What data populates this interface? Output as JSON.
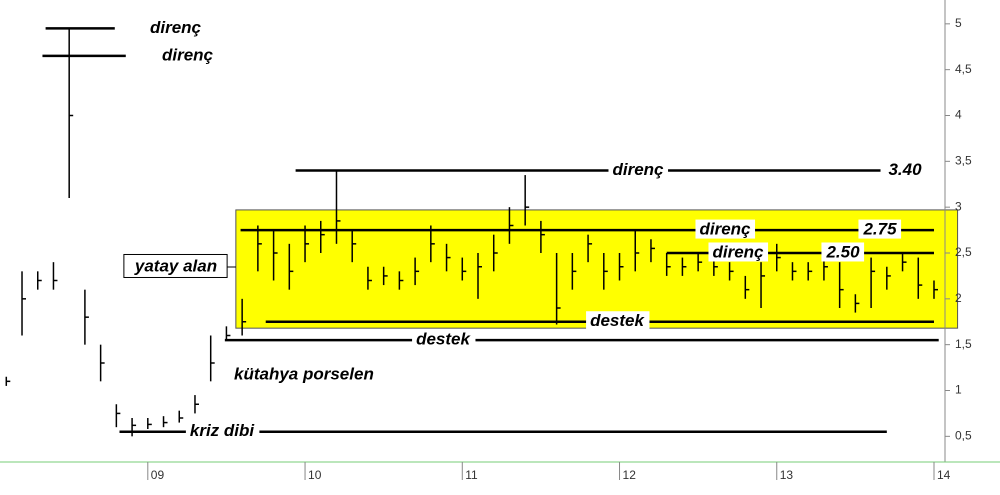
{
  "chart_data": {
    "type": "ohlc",
    "x": [
      2008.1,
      2008.2,
      2008.3,
      2008.4,
      2008.5,
      2008.6,
      2008.7,
      2008.8,
      2008.9,
      2009.0,
      2009.1,
      2009.2,
      2009.3,
      2009.4,
      2009.5,
      2009.6,
      2009.7,
      2009.8,
      2009.9,
      2010.0,
      2010.1,
      2010.2,
      2010.3,
      2010.4,
      2010.5,
      2010.6,
      2010.7,
      2010.8,
      2010.9,
      2011.0,
      2011.1,
      2011.2,
      2011.3,
      2011.4,
      2011.5,
      2011.6,
      2011.7,
      2011.8,
      2011.9,
      2012.0,
      2012.1,
      2012.2,
      2012.3,
      2012.4,
      2012.5,
      2012.6,
      2012.7,
      2012.8,
      2012.9,
      2013.0,
      2013.1,
      2013.2,
      2013.3,
      2013.4,
      2013.5,
      2013.6,
      2013.7,
      2013.8,
      2013.9,
      2014.0
    ],
    "high": [
      1.15,
      2.3,
      2.3,
      2.4,
      4.95,
      2.1,
      1.5,
      0.85,
      0.7,
      0.7,
      0.72,
      0.78,
      0.95,
      1.6,
      1.7,
      2.0,
      2.8,
      2.75,
      2.6,
      2.8,
      2.85,
      3.4,
      2.75,
      2.35,
      2.35,
      2.3,
      2.45,
      2.8,
      2.6,
      2.45,
      2.5,
      2.7,
      3.0,
      3.35,
      2.85,
      2.5,
      2.5,
      2.7,
      2.5,
      2.5,
      2.75,
      2.65,
      2.5,
      2.45,
      2.5,
      2.45,
      2.4,
      2.25,
      2.4,
      2.6,
      2.4,
      2.4,
      2.45,
      2.4,
      2.05,
      2.45,
      2.35,
      2.5,
      2.45,
      2.2
    ],
    "low": [
      1.05,
      1.6,
      2.1,
      2.1,
      3.1,
      1.5,
      1.1,
      0.6,
      0.5,
      0.58,
      0.6,
      0.65,
      0.75,
      1.1,
      1.55,
      1.6,
      2.3,
      2.2,
      2.1,
      2.4,
      2.5,
      2.6,
      2.4,
      2.1,
      2.15,
      2.1,
      2.15,
      2.4,
      2.3,
      2.2,
      2.0,
      2.3,
      2.6,
      2.8,
      2.5,
      1.72,
      2.1,
      2.4,
      2.1,
      2.2,
      2.3,
      2.4,
      2.25,
      2.25,
      2.3,
      2.25,
      2.2,
      2.0,
      1.9,
      2.3,
      2.2,
      2.2,
      2.2,
      1.9,
      1.85,
      1.9,
      2.1,
      2.3,
      2.0,
      2.0
    ],
    "close": [
      1.1,
      2.0,
      2.2,
      2.2,
      4.0,
      1.8,
      1.3,
      0.75,
      0.62,
      0.63,
      0.65,
      0.7,
      0.85,
      1.3,
      1.6,
      1.75,
      2.6,
      2.5,
      2.3,
      2.6,
      2.7,
      2.85,
      2.6,
      2.2,
      2.25,
      2.2,
      2.3,
      2.6,
      2.45,
      2.3,
      2.35,
      2.5,
      2.8,
      3.0,
      2.7,
      1.9,
      2.3,
      2.6,
      2.3,
      2.35,
      2.5,
      2.55,
      2.35,
      2.35,
      2.4,
      2.35,
      2.3,
      2.1,
      2.25,
      2.45,
      2.3,
      2.3,
      2.35,
      2.1,
      1.95,
      2.3,
      2.25,
      2.4,
      2.15,
      2.1
    ],
    "color": "#000000",
    "xlim": [
      2008.06,
      2014.07
    ],
    "xticks": [
      {
        "value": 2009,
        "label": "09"
      },
      {
        "value": 2010,
        "label": "10"
      },
      {
        "value": 2011,
        "label": "11"
      },
      {
        "value": 2012,
        "label": "12"
      },
      {
        "value": 2013,
        "label": "13"
      },
      {
        "value": 2014,
        "label": "14"
      }
    ],
    "ylim": [
      0.22,
      5.26
    ],
    "yticks": [
      {
        "value": 0.5,
        "label": "0,5"
      },
      1,
      {
        "value": 1.5,
        "label": "1,5"
      },
      2,
      {
        "value": 2.5,
        "label": "2,5"
      },
      3,
      {
        "value": 3.5,
        "label": "3,5"
      },
      4,
      {
        "value": 4.5,
        "label": "4,5"
      },
      5
    ],
    "zone": {
      "x": [
        2009.56,
        2014.15
      ],
      "y": [
        1.68,
        2.97
      ],
      "color": "#ffff00"
    },
    "annotations": [
      {
        "text": "direnç",
        "y": 4.95,
        "x": [
          2008.35,
          2008.79
        ]
      },
      {
        "text": "direnç",
        "y": 4.65,
        "x": [
          2008.33,
          2008.86
        ]
      },
      {
        "text": "direnç",
        "y": 3.4,
        "x": [
          2009.94,
          2013.66
        ],
        "value_label": "3.40"
      },
      {
        "text": "direnç",
        "y": 2.75,
        "x": [
          2009.59,
          2014.0
        ],
        "value_label": "2.75"
      },
      {
        "text": "direnç",
        "y": 2.5,
        "x": [
          2012.3,
          2014.0
        ],
        "value_label": "2.50"
      },
      {
        "text": "destek",
        "y": 1.75,
        "x": [
          2009.75,
          2014.0
        ]
      },
      {
        "text": "destek",
        "y": 1.55,
        "x": [
          2009.49,
          2014.03
        ]
      },
      {
        "text": "kriz dibi",
        "y": 0.55,
        "x": [
          2008.82,
          2013.7
        ]
      }
    ],
    "notes": [
      "yatay alan",
      "kütahya porselen"
    ]
  }
}
